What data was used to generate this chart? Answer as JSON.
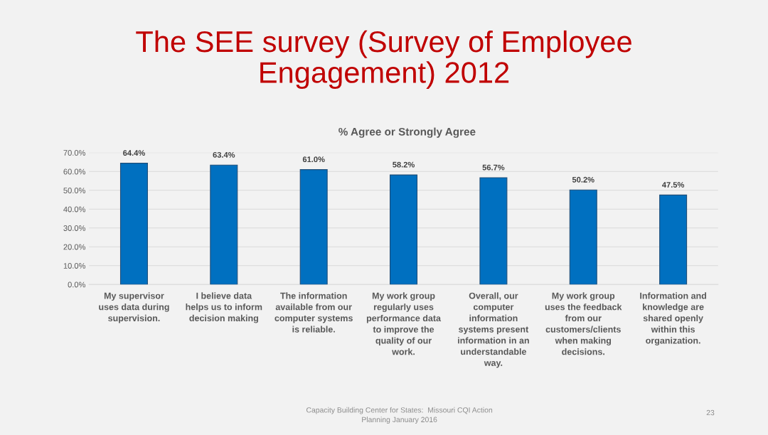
{
  "chart_data": {
    "type": "bar",
    "title": "The SEE survey (Survey of Employee\nEngagement) 2012",
    "subtitle": "% Agree or Strongly Agree",
    "categories": [
      "My supervisor\nuses data during\nsupervision.",
      "I believe data\nhelps us to inform\ndecision making",
      "The information\navailable from our\ncomputer systems\nis reliable.",
      "My work group\nregularly uses\nperformance data\nto improve the\nquality of our\nwork.",
      "Overall, our\ncomputer\ninformation\nsystems present\ninformation in an\nunderstandable\nway.",
      "My work group\nuses the feedback\nfrom our\ncustomers/clients\nwhen making\ndecisions.",
      "Information and\nknowledge are\nshared openly\nwithin this\norganization."
    ],
    "values": [
      64.4,
      63.4,
      61.0,
      58.2,
      56.7,
      50.2,
      47.5
    ],
    "value_labels": [
      "64.4%",
      "63.4%",
      "61.0%",
      "58.2%",
      "56.7%",
      "50.2%",
      "47.5%"
    ],
    "color": "#0070c0",
    "ylim": [
      0,
      70
    ],
    "yticks": [
      {
        "value": 0,
        "label": "0.0%"
      },
      {
        "value": 10,
        "label": "10.0%"
      },
      {
        "value": 20,
        "label": "20.0%"
      },
      {
        "value": 30,
        "label": "30.0%"
      },
      {
        "value": 40,
        "label": "40.0%"
      },
      {
        "value": 50,
        "label": "50.0%"
      },
      {
        "value": 60,
        "label": "60.0%"
      },
      {
        "value": 70,
        "label": "70.0%"
      }
    ],
    "grid": "y",
    "annotations": [
      "Capacity Building Center for States:  Missouri CQI Action\nPlanning January 2016",
      "23"
    ]
  }
}
